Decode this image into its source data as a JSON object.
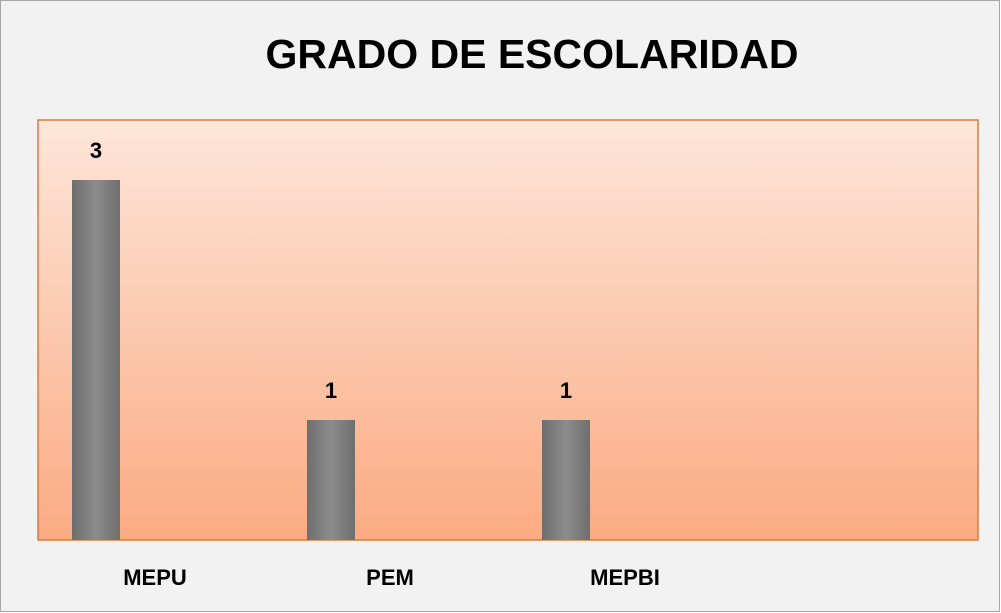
{
  "chart_data": {
    "type": "bar",
    "title": "GRADO DE ESCOLARIDAD",
    "categories": [
      "MEPU",
      "PEM",
      "MEPBI"
    ],
    "values": [
      3,
      1,
      1
    ],
    "color": "#808080",
    "ylim": [
      0,
      3.5
    ]
  }
}
